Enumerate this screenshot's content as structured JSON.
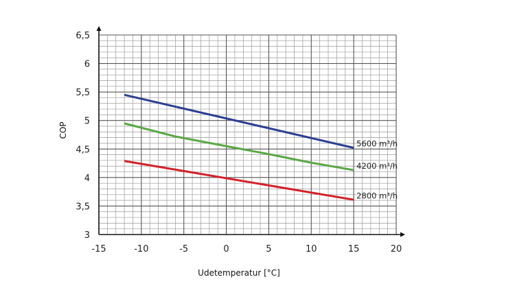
{
  "chart_data": {
    "type": "line",
    "title": "",
    "xlabel": "Udetemperatur [°C]",
    "ylabel": "COP",
    "xlim": [
      -15,
      20
    ],
    "ylim": [
      3,
      6.5
    ],
    "x_ticks": [
      "-15",
      "-10",
      "-5",
      "0",
      "5",
      "10",
      "15",
      "20"
    ],
    "y_ticks": [
      "3",
      "3,5",
      "4",
      "4,5",
      "5",
      "5,5",
      "6",
      "6,5"
    ],
    "grid": true,
    "minor_grid": true,
    "series": [
      {
        "name": "5600 m³/h",
        "color": "#2b3f92",
        "x": [
          -12,
          15
        ],
        "y": [
          5.45,
          4.52
        ]
      },
      {
        "name": "4200 m³/h",
        "color": "#5aa845",
        "x": [
          -12,
          -6,
          0,
          5,
          10,
          15
        ],
        "y": [
          4.95,
          4.72,
          4.55,
          4.41,
          4.26,
          4.13
        ]
      },
      {
        "name": "2800 m³/h",
        "color": "#d42027",
        "x": [
          -12,
          15
        ],
        "y": [
          4.29,
          3.61
        ]
      }
    ]
  }
}
